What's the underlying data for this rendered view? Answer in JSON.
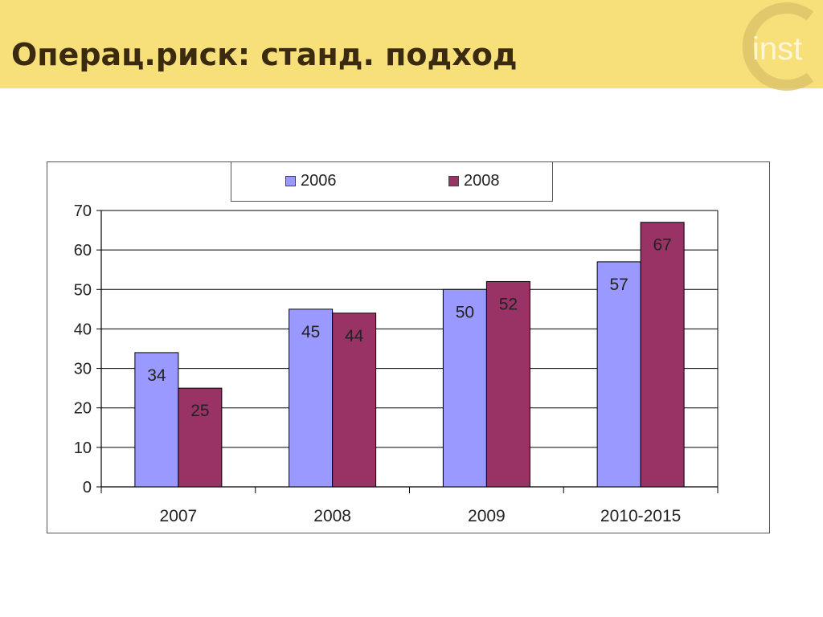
{
  "header": {
    "title": "Операц.риск: станд. подход",
    "logo_text": "inst"
  },
  "colors": {
    "header_bg": "#f7df7a",
    "series_2006": "#9999ff",
    "series_2008": "#993366"
  },
  "chart_data": {
    "type": "bar",
    "categories": [
      "2007",
      "2008",
      "2009",
      "2010-2015"
    ],
    "series": [
      {
        "name": "2006",
        "values": [
          34,
          45,
          50,
          57
        ],
        "color": "#9999ff"
      },
      {
        "name": "2008",
        "values": [
          25,
          44,
          52,
          67
        ],
        "color": "#993366"
      }
    ],
    "ylim": [
      0,
      70
    ],
    "yticks": [
      "0",
      "10",
      "20",
      "30",
      "40",
      "50",
      "60",
      "70"
    ],
    "grid": true,
    "legend_position": "top",
    "data_labels": true
  }
}
